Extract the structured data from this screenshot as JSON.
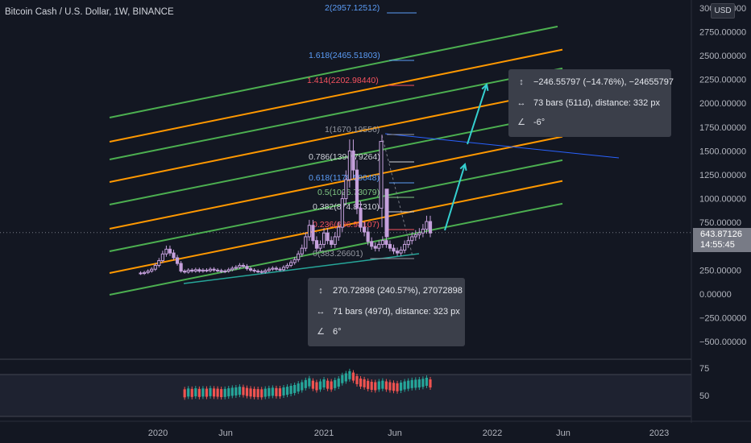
{
  "title": "Bitcoin Cash / U.S. Dollar, 1W, BINANCE",
  "currency_button": "USD",
  "colors": {
    "background": "#131722",
    "green": "#4caf50",
    "orange": "#ff9800",
    "candle": "#c5a0dc",
    "up": "#26a69a",
    "down": "#ef5350",
    "cyan": "#35d0d0"
  },
  "price_axis": {
    "labels": [
      "3000.00000",
      "2750.00000",
      "2500.00000",
      "2250.00000",
      "2000.00000",
      "1750.00000",
      "1500.00000",
      "1250.00000",
      "1000.00000",
      "750.00000",
      "500.00000",
      "250.00000",
      "0.00000",
      "−250.00000",
      "−500.00000"
    ]
  },
  "last_price": {
    "price": "643.87126",
    "countdown": "14:55:45"
  },
  "time_axis": {
    "labels": [
      "2020",
      "Jun",
      "2021",
      "Jun",
      "2022",
      "Jun",
      "2023"
    ]
  },
  "indicator_axis": {
    "labels": [
      "75",
      "50"
    ]
  },
  "fib_levels": [
    {
      "label": "2(2957.12512)",
      "color": "#5b9cf6"
    },
    {
      "label": "1.618(2465.51803)",
      "color": "#5b9cf6"
    },
    {
      "label": "1.414(2202.98440)",
      "color": "#f7525f"
    },
    {
      "label": "1(1670.19556)",
      "color": "#9598a1"
    },
    {
      "label": "0.786(1394.79264)",
      "color": "#d1d4dc"
    },
    {
      "label": "0.618(1178.58048)",
      "color": "#5b9cf6"
    },
    {
      "label": "0.5(1026.73079)",
      "color": "#81c784"
    },
    {
      "label": "0.382(874.87310)",
      "color": "#d1d4dc"
    },
    {
      "label": "0.236(686.98107)",
      "color": "#f7525f"
    },
    {
      "label": "0(383.26601)",
      "color": "#9598a1"
    }
  ],
  "measure_top": {
    "line1": "−246.55797 (−14.76%), −24655797",
    "line2": "73 bars (511d), distance: 332 px",
    "line3": "-6°"
  },
  "measure_bottom": {
    "line1": "270.72898 (240.57%), 27072898",
    "line2": "71 bars (497d), distance: 323 px",
    "line3": "6°"
  },
  "chart_data": {
    "type": "candlestick",
    "symbol": "BCHUSD",
    "timeframe": "1W",
    "exchange": "BINANCE",
    "ylim": [
      -500,
      3000
    ],
    "x_ticks": [
      "2020",
      "Jun",
      "2021",
      "Jun",
      "2022",
      "Jun",
      "2023"
    ],
    "weekly_close_approx": [
      220,
      215,
      225,
      240,
      260,
      300,
      350,
      420,
      470,
      430,
      380,
      320,
      240,
      230,
      250,
      240,
      255,
      240,
      250,
      245,
      260,
      250,
      245,
      235,
      240,
      255,
      270,
      280,
      300,
      290,
      265,
      250,
      240,
      235,
      230,
      245,
      260,
      270,
      260,
      255,
      280,
      300,
      330,
      360,
      420,
      480,
      600,
      720,
      560,
      480,
      520,
      640,
      560,
      520,
      600,
      700,
      1000,
      1200,
      1500,
      1300,
      900,
      700,
      650,
      550,
      500,
      480,
      520,
      560,
      520,
      480,
      450,
      430,
      460,
      520,
      560,
      600,
      620,
      640,
      680,
      760,
      640
    ],
    "last_price": 643.87126,
    "indicator_ticks": [
      75,
      50
    ]
  }
}
